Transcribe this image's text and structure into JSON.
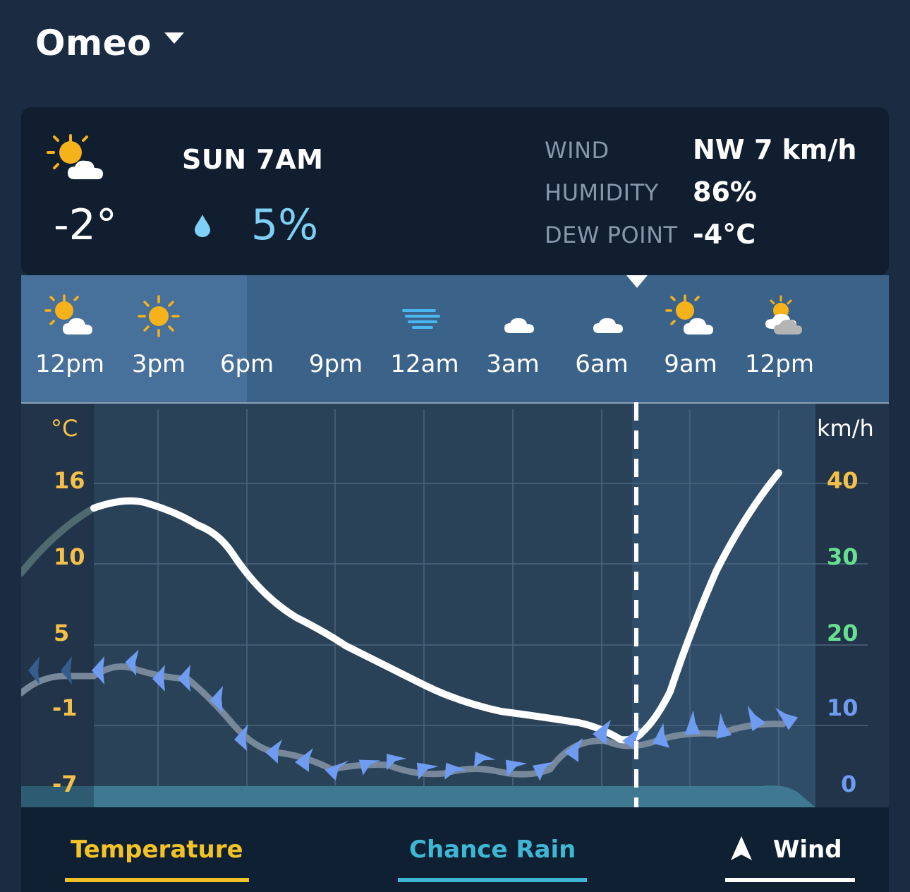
{
  "header": {
    "location": "Omeo"
  },
  "current": {
    "icon": "sun-cloud-icon",
    "temperature": "-2°",
    "day_time": "SUN 7AM",
    "rain_icon": "raindrop-icon",
    "rain_chance": "5%",
    "stats": [
      {
        "label": "WIND",
        "value": "NW 7 km/h"
      },
      {
        "label": "HUMIDITY",
        "value": "86%"
      },
      {
        "label": "DEW POINT",
        "value": "-4°C"
      }
    ]
  },
  "hourly": [
    {
      "time": "12pm",
      "icon": "sun-cloud-icon"
    },
    {
      "time": "3pm",
      "icon": "sun-icon"
    },
    {
      "time": "6pm",
      "icon": "moon-icon"
    },
    {
      "time": "9pm",
      "icon": "moon-icon"
    },
    {
      "time": "12am",
      "icon": "windy-moon-icon"
    },
    {
      "time": "3am",
      "icon": "moon-cloud-icon"
    },
    {
      "time": "6am",
      "icon": "moon-cloud-icon"
    },
    {
      "time": "9am",
      "icon": "sun-cloud-icon"
    },
    {
      "time": "12pm",
      "icon": "sun-cloudy-icon"
    }
  ],
  "chart": {
    "left_unit": "°C",
    "right_unit": "km/h",
    "left_ticks": [
      "16",
      "10",
      "5",
      "-1",
      "-7"
    ],
    "right_ticks": [
      "40",
      "30",
      "20",
      "10",
      "0"
    ],
    "colors": {
      "temp_axis": "#f5c04a",
      "wind_high": "#f5c04a",
      "wind_mid": "#67e08f",
      "wind_low": "#6f9bf0",
      "wind_arrow": "#6f9bf0",
      "temp_line_warm": "#f4f08a",
      "temp_line_cool": "#ffffff"
    },
    "temp_series": [
      14,
      15.6,
      14.4,
      12.8,
      8.8,
      5.5,
      3.0,
      1.0,
      -1.3,
      -2.9,
      -3.4,
      -4.0,
      -2.0,
      9.0,
      17.0
    ],
    "wind_series_kmh": [
      14,
      15.8,
      14.2,
      5.5,
      3.2,
      2.0,
      2.5,
      1.5,
      1.5,
      2.8,
      7.0,
      6.5,
      8.5,
      8.5
    ]
  },
  "legend": {
    "temperature": "Temperature",
    "rain": "Chance Rain",
    "wind": "Wind",
    "colors": {
      "temperature": "#f2c228",
      "rain": "#3fb7d4",
      "wind": "#ffffff"
    }
  }
}
